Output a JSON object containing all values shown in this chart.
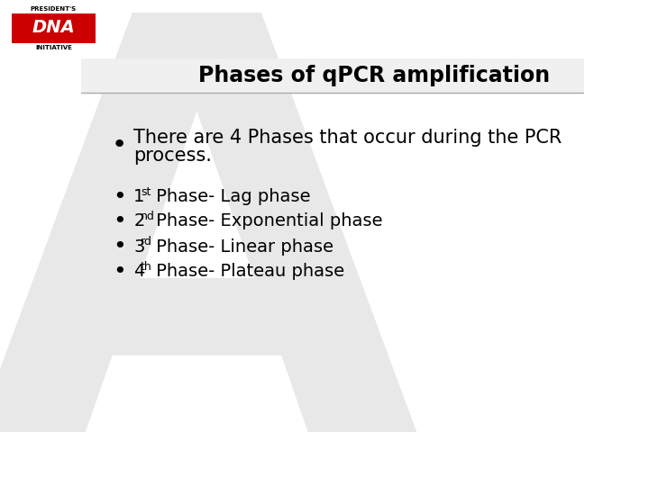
{
  "title": "Phases of qPCR amplification",
  "title_fontsize": 17,
  "title_fontweight": "bold",
  "background_color": "#ffffff",
  "text_color": "#000000",
  "bullet1_line1": "There are 4 Phases that occur during the PCR",
  "bullet1_line2": "process.",
  "bullet1_fontsize": 15,
  "bullets": [
    {
      "prefix": "1",
      "sup": "st",
      "text": " Phase- Lag phase"
    },
    {
      "prefix": "2",
      "sup": "nd",
      "text": " Phase- Exponential phase"
    },
    {
      "prefix": "3",
      "sup": "rd",
      "text": " Phase- Linear phase"
    },
    {
      "prefix": "4",
      "sup": "th",
      "text": " Phase- Plateau phase"
    }
  ],
  "bullet_fontsize": 14,
  "logo_red": "#cc0000",
  "logo_text_white": "#ffffff",
  "watermark_color": "#e8e8e8",
  "title_underline_color": "#aaaaaa"
}
